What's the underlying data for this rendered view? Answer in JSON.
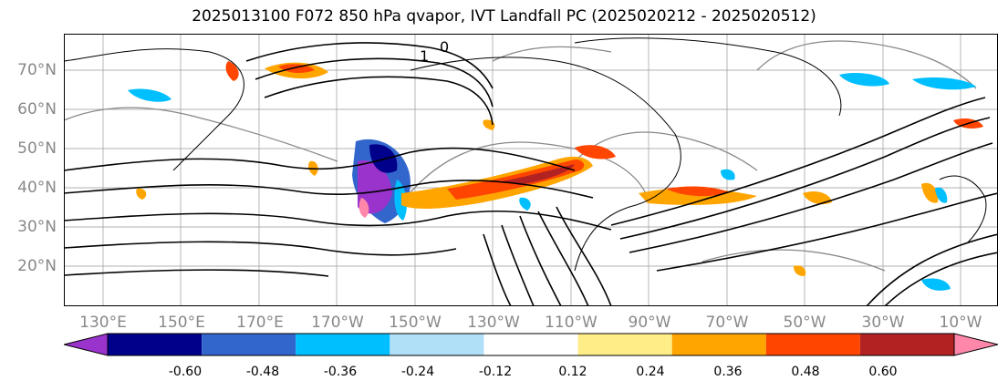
{
  "title": "2025013100 F072 850 hPa qvapor, IVT Landfall PC (2025020212 - 2025020512)",
  "map": {
    "lat_labels": [
      "70°N",
      "60°N",
      "50°N",
      "40°N",
      "30°N",
      "20°N"
    ],
    "lon_labels": [
      "130°E",
      "150°E",
      "170°E",
      "170°W",
      "150°W",
      "130°W",
      "110°W",
      "90°W",
      "70°W",
      "50°W",
      "30°W",
      "10°W"
    ],
    "contour_labels": [
      "0",
      "1"
    ]
  },
  "colorbar": {
    "levels": [
      "-0.60",
      "-0.48",
      "-0.36",
      "-0.24",
      "-0.12",
      "0.12",
      "0.24",
      "0.36",
      "0.48",
      "0.60"
    ],
    "colors": [
      "#9933cc",
      "#00008b",
      "#3366cc",
      "#00bfff",
      "#b0e0f8",
      "#ffffff",
      "#ffee88",
      "#ffa500",
      "#ff4500",
      "#b22222",
      "#ff88aa"
    ]
  }
}
